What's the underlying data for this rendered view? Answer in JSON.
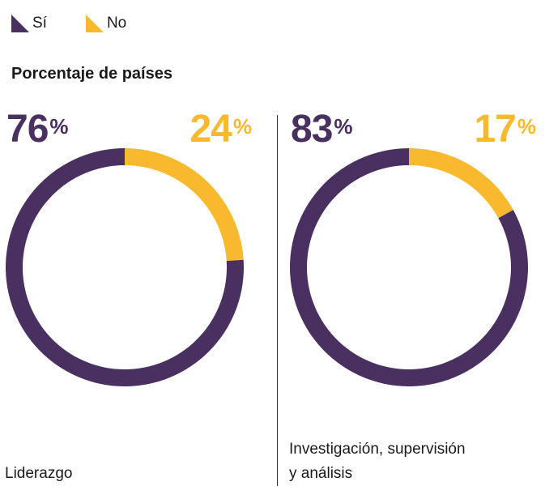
{
  "legend": {
    "items": [
      {
        "label": "Sí",
        "color": "#4a3060"
      },
      {
        "label": "No",
        "color": "#f9b92f"
      }
    ]
  },
  "subtitle": "Porcentaje de países",
  "chart_data": [
    {
      "type": "pie",
      "label": "Liderazgo",
      "slices": [
        {
          "name": "Sí",
          "value": 76,
          "display": "76",
          "color": "#4a3060"
        },
        {
          "name": "No",
          "value": 24,
          "display": "24",
          "color": "#f9b92f"
        }
      ],
      "percent_symbol": "%"
    },
    {
      "type": "pie",
      "label_lines": [
        "Investigación, supervisión",
        "y análisis"
      ],
      "slices": [
        {
          "name": "Sí",
          "value": 83,
          "display": "83",
          "color": "#4a3060"
        },
        {
          "name": "No",
          "value": 17,
          "display": "17",
          "color": "#f9b92f"
        }
      ],
      "percent_symbol": "%"
    }
  ]
}
